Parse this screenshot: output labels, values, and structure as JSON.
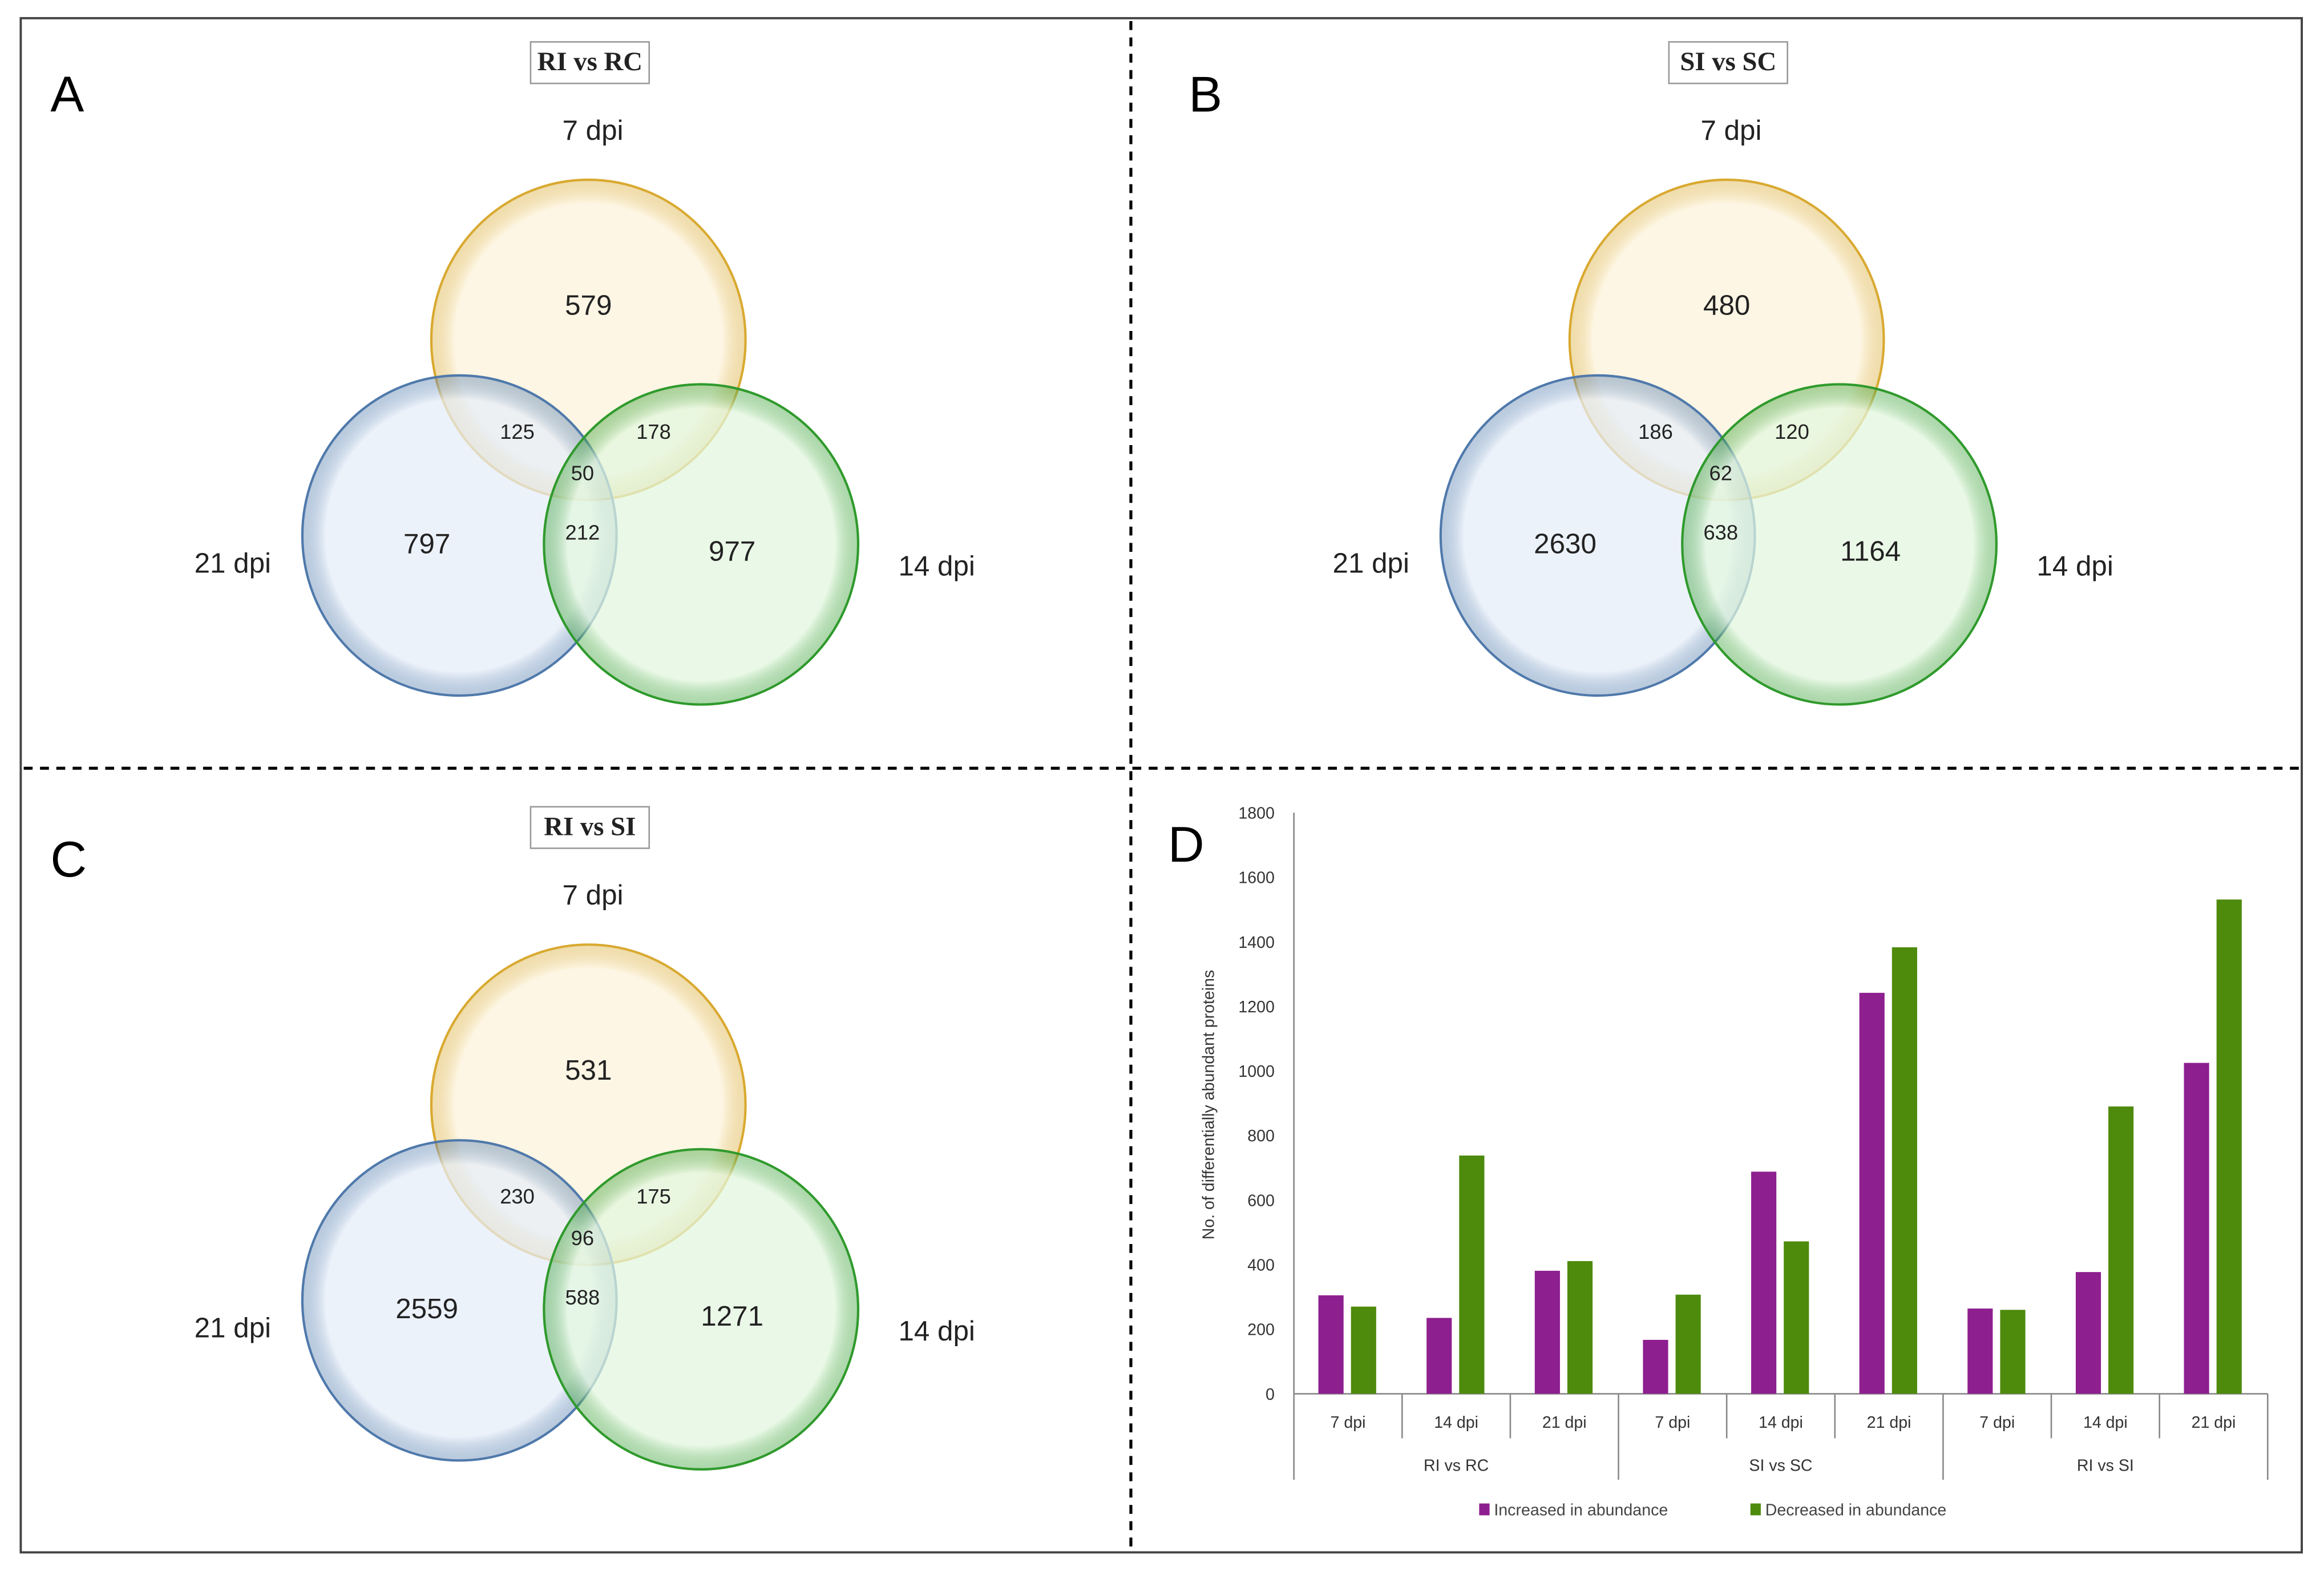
{
  "panels": [
    {
      "letter": "A",
      "title": "RI vs RC",
      "sets": {
        "top": "7 dpi",
        "left": "21 dpi",
        "right": "14 dpi"
      },
      "regions": {
        "top_only": "579",
        "top_left": "125",
        "top_right": "178",
        "center": "50",
        "left_right": "212",
        "left_only": "797",
        "right_only": "977"
      }
    },
    {
      "letter": "B",
      "title": "SI vs SC",
      "sets": {
        "top": "7 dpi",
        "left": "21 dpi",
        "right": "14 dpi"
      },
      "regions": {
        "top_only": "480",
        "top_left": "186",
        "top_right": "120",
        "center": "62",
        "left_right": "638",
        "left_only": "2630",
        "right_only": "1164"
      }
    },
    {
      "letter": "C",
      "title": "RI vs SI",
      "sets": {
        "top": "7 dpi",
        "left": "21 dpi",
        "right": "14 dpi"
      },
      "regions": {
        "top_only": "531",
        "top_left": "230",
        "top_right": "175",
        "center": "96",
        "left_right": "588",
        "left_only": "2559",
        "right_only": "1271"
      }
    }
  ],
  "venn_colors": {
    "top_fill": "#fdf3da",
    "top_stroke": "#d9a930",
    "left_fill": "#e5edf8",
    "left_stroke": "#4f79ab",
    "right_fill": "#e2f7de",
    "right_stroke": "#2f9a2c"
  },
  "chart_data": {
    "letter": "D",
    "type": "bar",
    "ylabel": "No. of differentially abundant proteins",
    "ylim": [
      0,
      1800
    ],
    "yticks": [
      "0",
      "200",
      "400",
      "600",
      "800",
      "1000",
      "1200",
      "1400",
      "1600",
      "1800"
    ],
    "groups": [
      {
        "label": "RI vs RC",
        "categories": [
          "7 dpi",
          "14 dpi",
          "21 dpi"
        ]
      },
      {
        "label": "SI vs SC",
        "categories": [
          "7 dpi",
          "14 dpi",
          "21 dpi"
        ]
      },
      {
        "label": "RI vs SI",
        "categories": [
          "7 dpi",
          "14 dpi",
          "21 dpi"
        ]
      }
    ],
    "series": [
      {
        "name": "Increased in abundance",
        "color": "#8e1f8f",
        "values": [
          305,
          235,
          381,
          167,
          688,
          1242,
          264,
          377,
          1025
        ]
      },
      {
        "name": "Decreased in abundance",
        "color": "#4e8a0c",
        "values": [
          270,
          738,
          411,
          307,
          472,
          1383,
          260,
          890,
          1531
        ]
      }
    ],
    "legend": "bottom",
    "grid": false
  }
}
